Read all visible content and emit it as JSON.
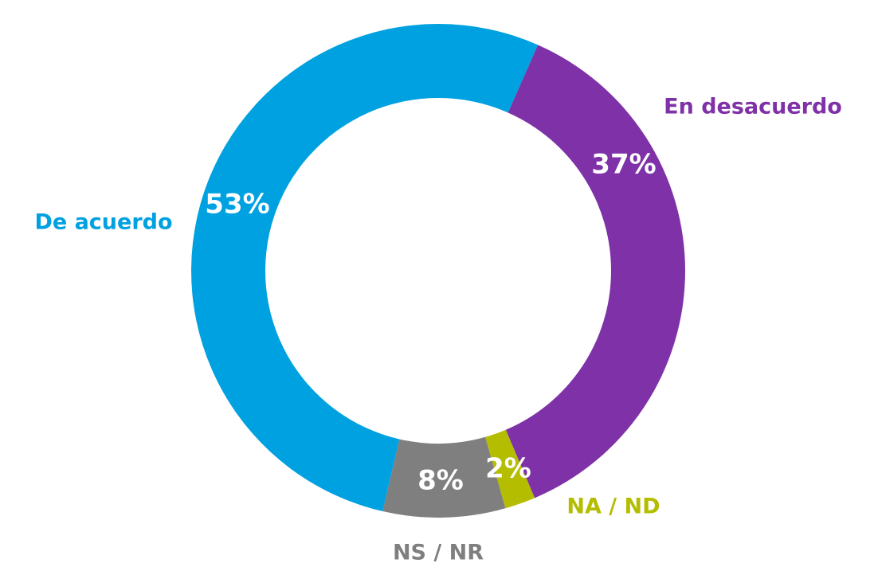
{
  "chart_data": {
    "type": "donut",
    "categories": [
      "En desacuerdo",
      "NA / ND",
      "NS / NR",
      "De acuerdo"
    ],
    "values": [
      37,
      2,
      8,
      53
    ],
    "value_labels": [
      "37%",
      "2%",
      "8%",
      "53%"
    ],
    "colors": [
      "#7f31a7",
      "#b4bd00",
      "#7f7f7f",
      "#00a1e0"
    ]
  }
}
